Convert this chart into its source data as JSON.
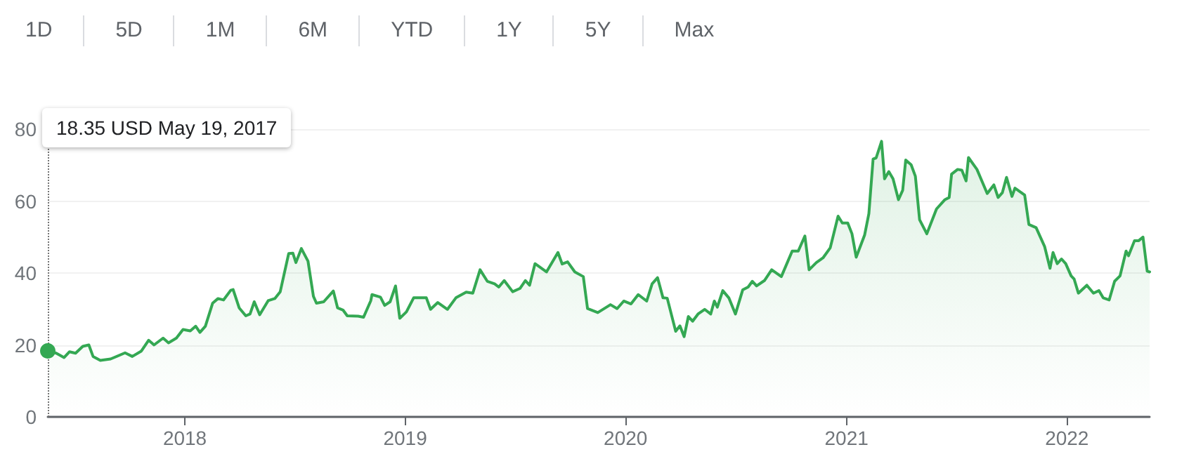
{
  "chart_data": {
    "type": "area",
    "annotations": [
      "1D",
      "5D",
      "1M",
      "6M",
      "YTD",
      "1Y",
      "5Y",
      "Max"
    ],
    "x": [
      "2017-05-19",
      "2017-06-02",
      "2017-06-15",
      "2017-06-24",
      "2017-07-04",
      "2017-07-16",
      "2017-07-26",
      "2017-08-02",
      "2017-08-14",
      "2017-08-31",
      "2017-09-24",
      "2017-10-06",
      "2017-10-21",
      "2017-11-02",
      "2017-11-11",
      "2017-11-26",
      "2017-12-05",
      "2017-12-18",
      "2017-12-29",
      "2018-01-10",
      "2018-01-19",
      "2018-01-26",
      "2018-02-04",
      "2018-02-16",
      "2018-02-25",
      "2018-03-06",
      "2018-03-18",
      "2018-03-22",
      "2018-04-01",
      "2018-04-12",
      "2018-04-19",
      "2018-04-26",
      "2018-05-05",
      "2018-05-19",
      "2018-05-30",
      "2018-06-08",
      "2018-06-22",
      "2018-06-29",
      "2018-07-04",
      "2018-07-13",
      "2018-07-24",
      "2018-08-02",
      "2018-08-07",
      "2018-08-19",
      "2018-09-04",
      "2018-09-11",
      "2018-09-20",
      "2018-09-27",
      "2018-10-15",
      "2018-10-24",
      "2018-11-05",
      "2018-11-07",
      "2018-11-21",
      "2018-11-28",
      "2018-12-07",
      "2018-12-16",
      "2018-12-23",
      "2019-01-03",
      "2019-01-15",
      "2019-02-05",
      "2019-02-12",
      "2019-02-24",
      "2019-03-12",
      "2019-03-26",
      "2019-04-12",
      "2019-04-23",
      "2019-05-05",
      "2019-05-17",
      "2019-05-29",
      "2019-06-05",
      "2019-06-14",
      "2019-06-28",
      "2019-07-10",
      "2019-07-19",
      "2019-07-26",
      "2019-08-04",
      "2019-08-23",
      "2019-09-11",
      "2019-09-18",
      "2019-09-27",
      "2019-10-09",
      "2019-10-23",
      "2019-10-30",
      "2019-11-16",
      "2019-12-07",
      "2019-12-18",
      "2019-12-29",
      "2020-01-10",
      "2020-01-22",
      "2020-02-05",
      "2020-02-14",
      "2020-02-23",
      "2020-03-03",
      "2020-03-10",
      "2020-03-24",
      "2020-03-31",
      "2020-04-07",
      "2020-04-14",
      "2020-04-21",
      "2020-04-30",
      "2020-05-11",
      "2020-05-21",
      "2020-05-27",
      "2020-06-01",
      "2020-06-10",
      "2020-06-20",
      "2020-07-01",
      "2020-07-13",
      "2020-07-22",
      "2020-07-29",
      "2020-08-05",
      "2020-08-18",
      "2020-08-30",
      "2020-09-15",
      "2020-10-03",
      "2020-10-13",
      "2020-10-24",
      "2020-10-31",
      "2020-11-12",
      "2020-11-23",
      "2020-12-05",
      "2020-12-18",
      "2020-12-25",
      "2021-01-03",
      "2021-01-10",
      "2021-01-17",
      "2021-01-31",
      "2021-02-07",
      "2021-02-14",
      "2021-02-19",
      "2021-02-28",
      "2021-03-05",
      "2021-03-12",
      "2021-03-19",
      "2021-03-28",
      "2021-04-04",
      "2021-04-09",
      "2021-04-18",
      "2021-04-25",
      "2021-05-02",
      "2021-05-14",
      "2021-05-30",
      "2021-06-13",
      "2021-06-20",
      "2021-06-24",
      "2021-07-04",
      "2021-07-11",
      "2021-07-18",
      "2021-07-22",
      "2021-08-05",
      "2021-08-22",
      "2021-09-02",
      "2021-09-09",
      "2021-09-16",
      "2021-09-23",
      "2021-10-02",
      "2021-10-07",
      "2021-10-23",
      "2021-10-30",
      "2021-11-11",
      "2021-11-25",
      "2021-12-04",
      "2021-12-09",
      "2021-12-16",
      "2021-12-23",
      "2021-12-30",
      "2022-01-08",
      "2022-01-13",
      "2022-01-20",
      "2022-02-03",
      "2022-02-14",
      "2022-02-23",
      "2022-03-02",
      "2022-03-12",
      "2022-03-21",
      "2022-03-30",
      "2022-04-09",
      "2022-04-13",
      "2022-04-23",
      "2022-04-30",
      "2022-05-07",
      "2022-05-14",
      "2022-05-18"
    ],
    "series": [
      {
        "type": "scatter",
        "marker": "circle",
        "color": "#34a853",
        "x": [
          "2017-05-19"
        ],
        "values": [
          18.35
        ]
      },
      {
        "color": "#34a853",
        "marker": "none",
        "values": [
          18.35,
          17.7,
          16.5,
          18.1,
          17.7,
          19.6,
          20,
          16.8,
          15.7,
          16.1,
          17.8,
          16.8,
          18.3,
          21.3,
          20,
          21.9,
          20.6,
          21.9,
          24.3,
          23.9,
          25.2,
          23.5,
          25.2,
          31.6,
          32.9,
          32.5,
          35.2,
          35.4,
          30.3,
          28.1,
          28.6,
          32,
          28.4,
          32.3,
          32.9,
          34.8,
          45.4,
          45.5,
          42.9,
          46.8,
          43.3,
          33.5,
          31.6,
          32,
          35,
          30.3,
          29.7,
          28.1,
          28,
          27.7,
          32.3,
          34,
          33.3,
          31,
          32,
          36.4,
          27.4,
          29.2,
          33.1,
          33.1,
          29.9,
          31.8,
          29.9,
          33.1,
          34.7,
          34.4,
          40.9,
          37.7,
          37,
          36.1,
          37.9,
          34.8,
          35.7,
          37.9,
          36.6,
          42.6,
          40.3,
          45.7,
          42.5,
          43.1,
          40.3,
          39,
          30.1,
          29,
          31.2,
          30.1,
          32.2,
          31.4,
          34,
          32.2,
          37,
          38.7,
          33.1,
          33,
          23.8,
          25.3,
          22.3,
          27.9,
          26.6,
          28.6,
          29.9,
          28.6,
          32.2,
          30.5,
          35.1,
          33.1,
          28.6,
          35.3,
          36.1,
          37.7,
          36.4,
          37.9,
          40.9,
          39,
          46.1,
          46.1,
          50.3,
          40.9,
          42.9,
          44.2,
          47,
          55.8,
          53.9,
          53.9,
          50.9,
          44.4,
          50.6,
          56.5,
          71.7,
          72,
          76.6,
          66.2,
          68.2,
          66.2,
          60.4,
          63,
          71.4,
          70.1,
          66.9,
          54.8,
          50.9,
          57.8,
          60.4,
          61,
          67.5,
          68.8,
          68.6,
          65.6,
          72.1,
          68.8,
          62.1,
          64.5,
          61,
          62.3,
          66.6,
          61.3,
          63.6,
          61.7,
          53.5,
          52.6,
          47.4,
          41.3,
          45.7,
          42.6,
          43.9,
          42.6,
          39.2,
          38.3,
          34.4,
          36.6,
          34.4,
          35.1,
          33.1,
          32.5,
          37.7,
          39.2,
          46.1,
          44.8,
          49,
          49,
          50,
          40.5,
          40.3
        ]
      }
    ],
    "xlim": [
      "2017-05-19",
      "2022-05-18"
    ],
    "xticks": [
      "2018",
      "2019",
      "2020",
      "2021",
      "2022"
    ],
    "ylim": [
      0,
      80
    ],
    "yticks": [
      0,
      20,
      40,
      60,
      80
    ],
    "grid": "y",
    "line_style": "solid",
    "ref_lines": [
      {
        "axis": "x",
        "value": "2017-05-19",
        "label": "18.35 USD May 19, 2017",
        "line_style": "dotted",
        "color": "#757575"
      }
    ]
  }
}
